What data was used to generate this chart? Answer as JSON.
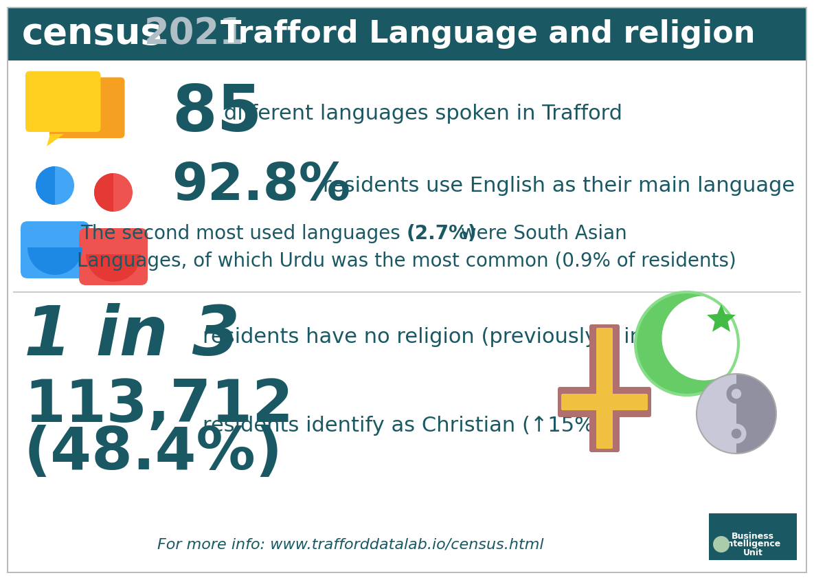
{
  "bg_color": "#ffffff",
  "header_bg": "#1a5963",
  "teal": "#1a5963",
  "header_census": "census",
  "header_year": "2021",
  "header_year_color": "#b0bec5",
  "header_title": "Trafford Language and religion",
  "stat1_num": "85",
  "stat1_text": " different languages spoken in Trafford",
  "stat2_num": "92.8%",
  "stat2_text": " residents use English as their main language",
  "stat3_pre": "The second most used languages ",
  "stat3_bold": "(2.7%)",
  "stat3_post": " were South Asian",
  "stat3_line2": "Languages, of which Urdu was the most common (0.9% of residents)",
  "stat4_num": "1 in 3",
  "stat4_text": "residents have no religion (previously 1 in 5)",
  "stat5_num": "113,712",
  "stat5_pct": "(48.4%)",
  "stat5_text": "residents identify as Christian (↑15%)",
  "footer": "For more info: www.trafforddatalab.io/census.html",
  "cross_brown": "#b07070",
  "cross_yellow": "#f0c040",
  "crescent_green": "#66cc66",
  "crescent_light": "#88dd88",
  "star_green": "#44bb44",
  "yy_gray": "#9090a0",
  "yy_light": "#c8c8d8"
}
